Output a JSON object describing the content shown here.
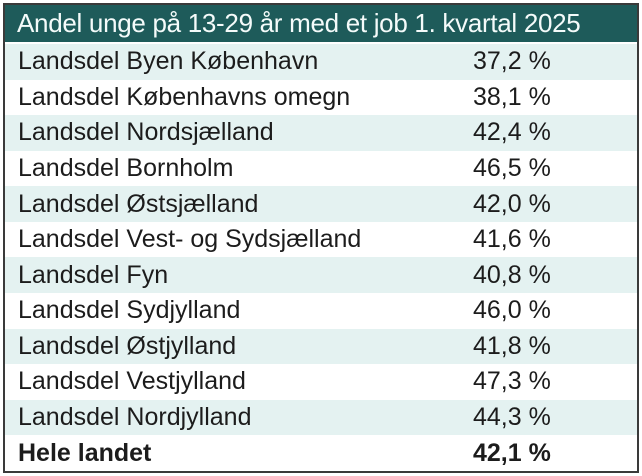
{
  "table": {
    "title": "Andel unge på 13-29 år med et job 1. kvartal 2025",
    "rows": [
      {
        "label": "Landsdel Byen København",
        "value": "37,2 %"
      },
      {
        "label": "Landsdel Københavns omegn",
        "value": "38,1 %"
      },
      {
        "label": "Landsdel Nordsjælland",
        "value": "42,4 %"
      },
      {
        "label": "Landsdel Bornholm",
        "value": "46,5 %"
      },
      {
        "label": "Landsdel Østsjælland",
        "value": "42,0 %"
      },
      {
        "label": "Landsdel Vest- og Sydsjælland",
        "value": "41,6 %"
      },
      {
        "label": "Landsdel Fyn",
        "value": "40,8 %"
      },
      {
        "label": "Landsdel Sydjylland",
        "value": "46,0 %"
      },
      {
        "label": "Landsdel Østjylland",
        "value": "41,8 %"
      },
      {
        "label": "Landsdel Vestjylland",
        "value": "47,3 %"
      },
      {
        "label": "Landsdel Nordjylland",
        "value": "44,3 %"
      }
    ],
    "footer": {
      "label": "Hele landet",
      "value": "42,1 %"
    }
  },
  "colors": {
    "header_bg": "#1e5b5a",
    "alt_row_bg": "#e4f2f1",
    "border": "#3a3a3a",
    "header_text": "#f4fbfa",
    "body_text": "#1c1c1c"
  },
  "chart_data": {
    "type": "table",
    "title": "Andel unge på 13-29 år med et job 1. kvartal 2025",
    "categories": [
      "Landsdel Byen København",
      "Landsdel Københavns omegn",
      "Landsdel Nordsjælland",
      "Landsdel Bornholm",
      "Landsdel Østsjælland",
      "Landsdel Vest- og Sydsjælland",
      "Landsdel Fyn",
      "Landsdel Sydjylland",
      "Landsdel Østjylland",
      "Landsdel Vestjylland",
      "Landsdel Nordjylland",
      "Hele landet"
    ],
    "values": [
      37.2,
      38.1,
      42.4,
      46.5,
      42.0,
      41.6,
      40.8,
      46.0,
      41.8,
      47.3,
      44.3,
      42.1
    ],
    "unit": "%"
  }
}
